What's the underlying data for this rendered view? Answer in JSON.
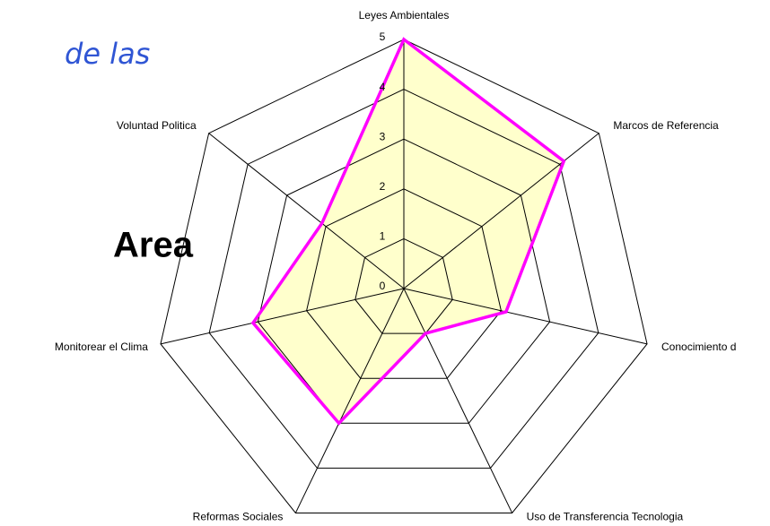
{
  "chart_data": {
    "type": "radar",
    "categories": [
      "Leyes Ambientales",
      "Marcos de Referencia",
      "Conocimiento d",
      "Uso de Transferencia Tecnologia",
      "Reformas Sociales",
      "Monitorear el Clima",
      "Voluntad Politica"
    ],
    "series": [
      {
        "name": "Area",
        "color": "#ff00ff",
        "fill": "#ffffcc",
        "values": [
          5,
          4.1,
          2.1,
          1,
          3,
          3.1,
          2.1
        ]
      }
    ],
    "ylim": [
      0,
      5
    ],
    "yticks": [
      0,
      1,
      2,
      3,
      4,
      5
    ],
    "grid": true,
    "annotations": [
      "de las",
      "Area"
    ]
  }
}
